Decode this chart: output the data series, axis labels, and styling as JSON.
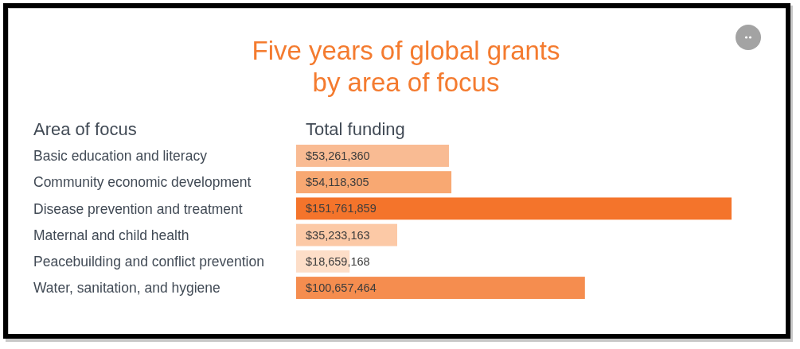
{
  "chart_data": {
    "type": "bar",
    "orientation": "horizontal",
    "title": "Five years of global grants\nby area of focus",
    "ylabel": "Area of focus",
    "xlabel": "Total funding",
    "categories": [
      "Basic education and literacy",
      "Community economic development",
      "Disease prevention and treatment",
      "Maternal and child health",
      "Peacebuilding and conflict prevention",
      "Water, sanitation, and hygiene"
    ],
    "values": [
      53261360,
      54118305,
      151761859,
      35233163,
      18659168,
      100657464
    ],
    "colors": [
      "#f9bb93",
      "#f8a872",
      "#f4742b",
      "#fcc9a6",
      "#fddec8",
      "#f58d4f"
    ],
    "value_labels": [
      "$53,261,360",
      "$54,118,305",
      "$151,761,859",
      "$35,233,163",
      "$18,659,168",
      "$100,657,464"
    ]
  }
}
